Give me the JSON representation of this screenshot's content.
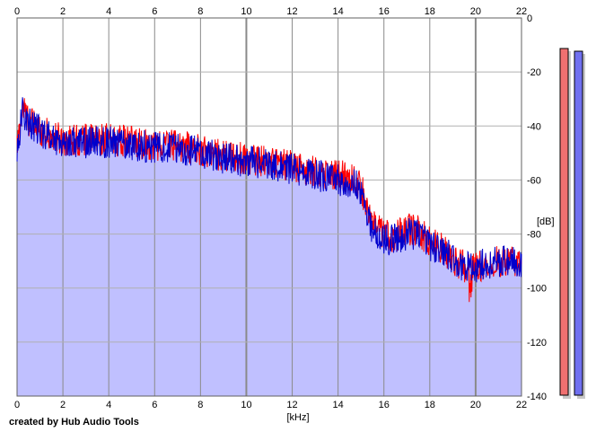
{
  "chart_data": {
    "type": "area",
    "title": "",
    "xlabel": "[kHz]",
    "ylabel": "[dB]",
    "xlim": [
      0,
      22
    ],
    "ylim": [
      -140,
      0
    ],
    "xticks": [
      0,
      2,
      4,
      6,
      8,
      10,
      12,
      14,
      16,
      18,
      20,
      22
    ],
    "xtick_labels": [
      "0",
      "2",
      "4",
      "6",
      "8",
      "10",
      "12",
      "14",
      "16",
      "18",
      "20",
      "22"
    ],
    "yticks": [
      0,
      -20,
      -40,
      -60,
      -80,
      -100,
      -120,
      -140
    ],
    "ytick_labels": [
      "0",
      "-20",
      "-40",
      "-60",
      "-80",
      "-100",
      "-120",
      "-140"
    ],
    "grid": true,
    "x_khz": [
      0,
      0.25,
      0.5,
      1,
      1.5,
      2,
      3,
      4,
      5,
      6,
      7,
      8,
      9,
      10,
      11,
      12,
      13,
      14,
      14.8,
      15.2,
      15.5,
      16,
      16.5,
      17,
      17.5,
      18,
      18.5,
      19,
      19.5,
      19.8,
      20,
      20.5,
      21,
      21.5,
      22
    ],
    "series": [
      {
        "color": "#ff0000",
        "values": [
          -48,
          -33,
          -38,
          -41,
          -44,
          -45,
          -45,
          -45,
          -46,
          -47,
          -47,
          -49,
          -51,
          -52,
          -53,
          -55,
          -57,
          -58,
          -60,
          -67,
          -77,
          -80,
          -81,
          -78,
          -79,
          -83,
          -85,
          -89,
          -92,
          -94,
          -92,
          -91,
          -90,
          -90,
          -91
        ]
      },
      {
        "color": "#0000cc",
        "values": [
          -49,
          -34,
          -39,
          -42,
          -44,
          -46,
          -46,
          -46,
          -47,
          -48,
          -48,
          -50,
          -52,
          -53,
          -54,
          -56,
          -58,
          -60,
          -62,
          -69,
          -79,
          -82,
          -82,
          -80,
          -80,
          -84,
          -86,
          -89,
          -92,
          -93,
          -92,
          -91,
          -90,
          -90,
          -90
        ]
      }
    ],
    "fill_color": "#c0c0ff",
    "level_meters": [
      {
        "color": "#f07070",
        "level_db": -2
      },
      {
        "color": "#7070f0",
        "level_db": -3
      }
    ]
  },
  "credit": "created by Hub Audio Tools"
}
